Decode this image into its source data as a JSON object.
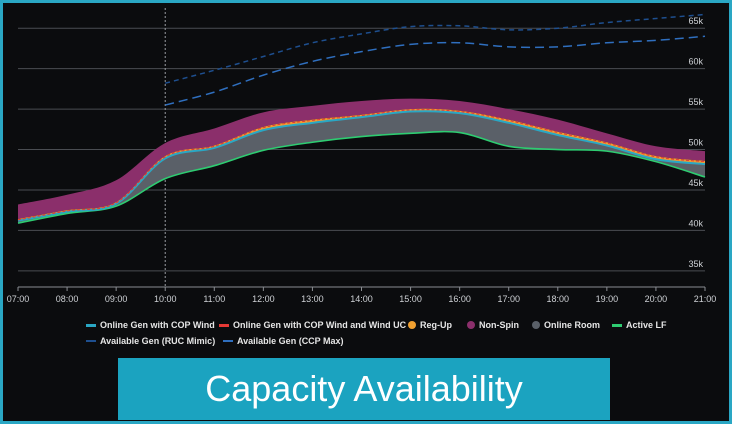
{
  "caption": "Capacity Availability",
  "colors": {
    "background": "#0b0c0e",
    "frame": "#2aa7c4",
    "caption_bg": "#1ba3c0",
    "online_gen_cop": "#2aa7c4",
    "online_gen_cop_uc": "#e53935",
    "reg_up": "#f0a030",
    "non_spin": "#8b2f6b",
    "online_room": "#5a6068",
    "active_lf": "#2ecc71",
    "available_gen": "#1e4f8f"
  },
  "legend": [
    {
      "label": "Online Gen with COP Wind",
      "icon": "line",
      "color": "#2aa7c4"
    },
    {
      "label": "Online Gen with COP Wind and Wind UC",
      "icon": "line",
      "color": "#e53935"
    },
    {
      "label": "Reg-Up",
      "icon": "dot",
      "color": "#f0a030"
    },
    {
      "label": "Non-Spin",
      "icon": "dot",
      "color": "#8b2f6b"
    },
    {
      "label": "Online Room",
      "icon": "dot",
      "color": "#5a6068"
    },
    {
      "label": "Active LF",
      "icon": "line",
      "color": "#2ecc71"
    },
    {
      "label": "Available Gen (RUC Mimic)",
      "icon": "dash",
      "color": "#1e4f8f"
    },
    {
      "label": "Available Gen (CCP Max)",
      "icon": "dash",
      "color": "#2f6fbf"
    }
  ],
  "chart_data": {
    "type": "area",
    "x": [
      "07:00",
      "08:00",
      "09:00",
      "10:00",
      "11:00",
      "12:00",
      "13:00",
      "14:00",
      "15:00",
      "16:00",
      "17:00",
      "18:00",
      "19:00",
      "20:00",
      "21:00"
    ],
    "x_ticks": [
      "07:00",
      "08:00",
      "09:00",
      "10:00",
      "11:00",
      "12:00",
      "13:00",
      "14:00",
      "15:00",
      "16:00",
      "17:00",
      "18:00",
      "19:00",
      "20:00",
      "21:00"
    ],
    "y_ticks": [
      "35k",
      "40k",
      "45k",
      "50k",
      "55k",
      "60k",
      "65k"
    ],
    "ylim": [
      33000,
      67500
    ],
    "current_time": "10:00",
    "grid": true,
    "series": [
      {
        "name": "Non-Spin",
        "values": [
          43200,
          44400,
          46200,
          50800,
          52600,
          54600,
          55400,
          56000,
          56300,
          56000,
          55000,
          53700,
          52000,
          50400,
          49800
        ]
      },
      {
        "name": "Reg-Up",
        "values": [
          41400,
          42500,
          43500,
          49200,
          50500,
          52800,
          53700,
          54300,
          55000,
          54800,
          53700,
          52200,
          50900,
          49200,
          48600
        ]
      },
      {
        "name": "Online Gen with COP Wind and Wind UC",
        "values": [
          41300,
          42400,
          43400,
          49100,
          50400,
          52700,
          53600,
          54200,
          54900,
          54700,
          53600,
          52100,
          50800,
          49100,
          48500
        ]
      },
      {
        "name": "Online Gen with COP Wind",
        "values": [
          41200,
          42300,
          43300,
          48900,
          50200,
          52400,
          53300,
          54000,
          54700,
          54500,
          53300,
          51800,
          50500,
          48800,
          48200
        ]
      },
      {
        "name": "Active LF",
        "values": [
          40900,
          42100,
          43000,
          46400,
          48000,
          49900,
          50900,
          51600,
          52000,
          52100,
          50400,
          50000,
          49800,
          48500,
          46600
        ]
      },
      {
        "name": "Available Gen (RUC Mimic)",
        "x": [
          "10:00",
          "11:00",
          "12:00",
          "13:00",
          "14:00",
          "15:00",
          "16:00",
          "17:00",
          "18:00",
          "19:00",
          "20:00",
          "21:00"
        ],
        "values": [
          58200,
          59800,
          61500,
          63200,
          64300,
          65200,
          65300,
          64800,
          65000,
          65700,
          66200,
          66700
        ]
      },
      {
        "name": "Available Gen (CCP Max)",
        "x": [
          "10:00",
          "11:00",
          "12:00",
          "13:00",
          "14:00",
          "15:00",
          "16:00",
          "17:00",
          "18:00",
          "19:00",
          "20:00",
          "21:00"
        ],
        "values": [
          55500,
          57100,
          59200,
          60900,
          62100,
          63000,
          63200,
          62700,
          62700,
          63200,
          63500,
          64000
        ]
      }
    ]
  }
}
